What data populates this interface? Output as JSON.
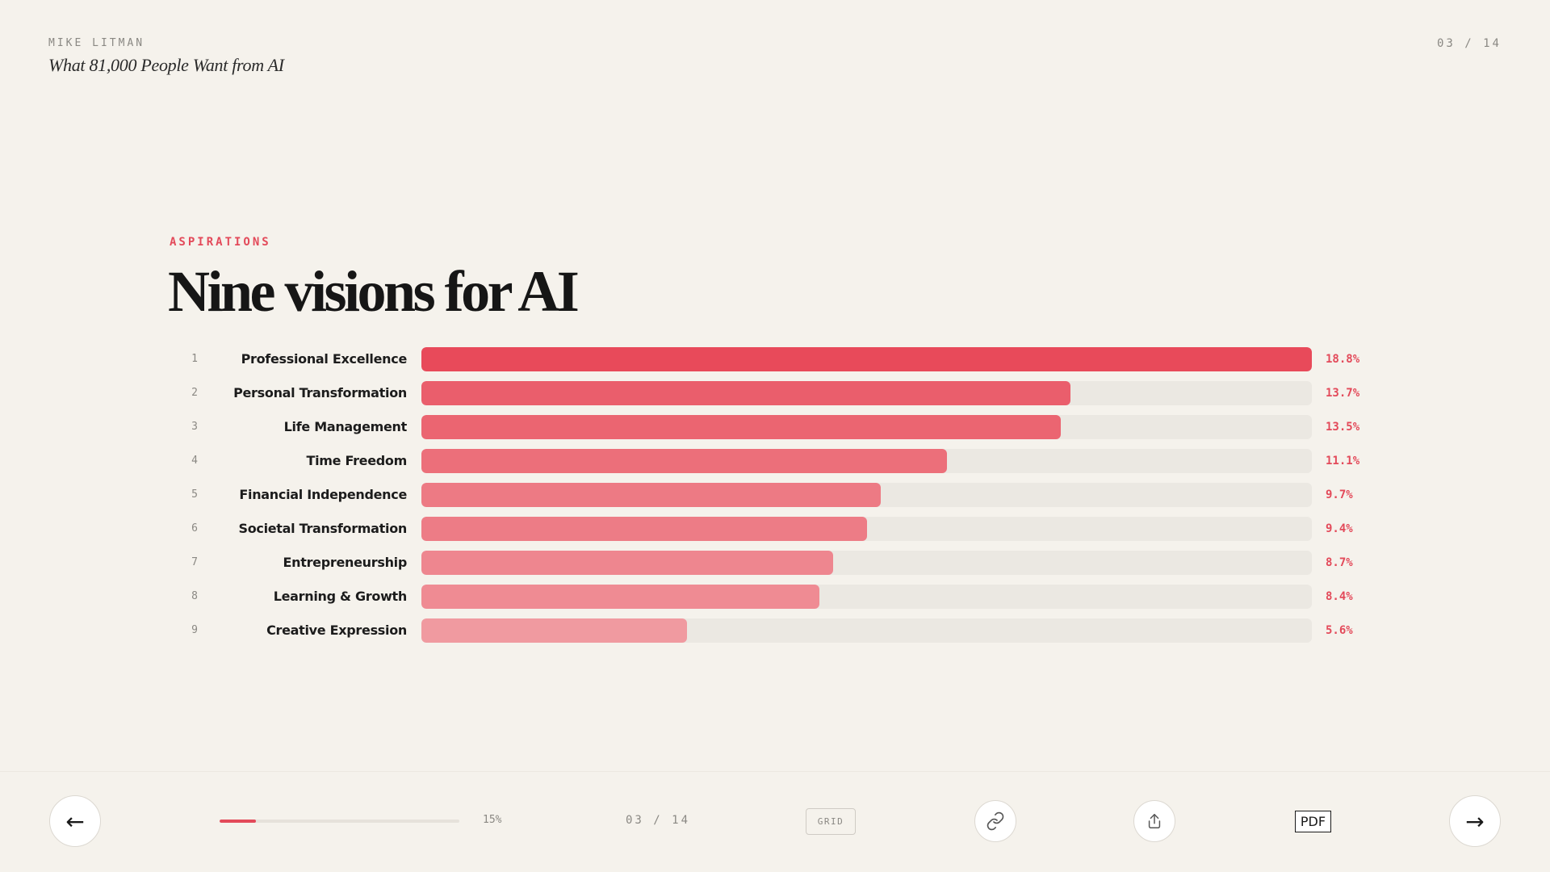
{
  "header": {
    "author": "MIKE LITMAN",
    "subtitle": "What 81,000 People Want from AI",
    "counter": "03 / 14"
  },
  "slide": {
    "eyebrow": "ASPIRATIONS",
    "title": "Nine visions for AI"
  },
  "chart_data": {
    "type": "bar",
    "orientation": "horizontal",
    "categories": [
      "Professional Excellence",
      "Personal Transformation",
      "Life Management",
      "Time Freedom",
      "Financial Independence",
      "Societal Transformation",
      "Entrepreneurship",
      "Learning & Growth",
      "Creative Expression"
    ],
    "ranks": [
      "1",
      "2",
      "3",
      "4",
      "5",
      "6",
      "7",
      "8",
      "9"
    ],
    "values": [
      18.8,
      13.7,
      13.5,
      11.1,
      9.7,
      9.4,
      8.7,
      8.4,
      5.6
    ],
    "value_labels": [
      "18.8%",
      "13.7%",
      "13.5%",
      "11.1%",
      "9.7%",
      "9.4%",
      "8.7%",
      "8.4%",
      "5.6%"
    ],
    "xlim": [
      0,
      18.8
    ],
    "bar_colors": [
      "#e84a5a",
      "#ea5e6c",
      "#eb6571",
      "#ec6f7a",
      "#ed7a84",
      "#ed7c86",
      "#ee868f",
      "#ef8b93",
      "#f09aa0"
    ],
    "track_color": "#ebe8e2",
    "grid": false,
    "legend": "none"
  },
  "footer": {
    "prev_icon": "arrow-left-icon",
    "prev_glyph": "←",
    "next_icon": "arrow-right-icon",
    "next_glyph": "→",
    "progress_value": 15,
    "progress_label": "15%",
    "counter": "03 / 14",
    "grid_label": "GRID",
    "link_icon": "link-icon",
    "share_icon": "share-icon",
    "pdf_label": "PDF"
  },
  "colors": {
    "accent": "#e34a5a",
    "background": "#f5f2ec",
    "muted": "#8a8883"
  }
}
